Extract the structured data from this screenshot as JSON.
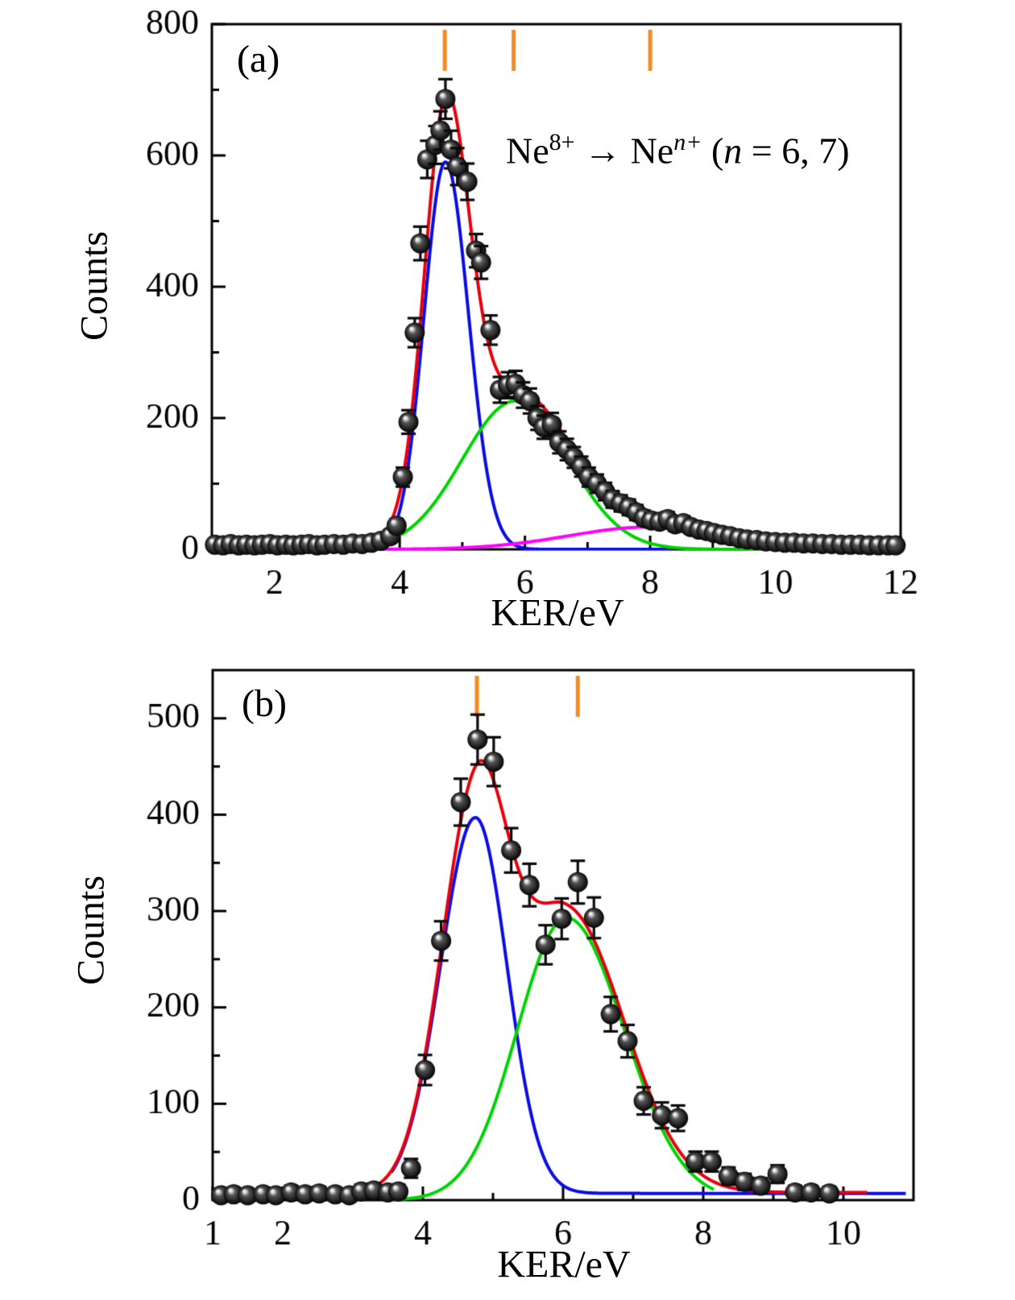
{
  "styles": {
    "total_color": "#e8000d",
    "component1_color": "#0b0be6",
    "component2_color": "#00d400",
    "component3_color": "#ff00ff",
    "marker_color": "#f58a1f",
    "axis_color": "#000000",
    "point_color": "#0a0a0a"
  },
  "chart_data": [
    {
      "type": "scatter",
      "panel_label": "(a)",
      "xlabel": "KER/eV",
      "ylabel": "Counts",
      "xlim": [
        1,
        12
      ],
      "ylim": [
        0,
        800
      ],
      "x_major_ticks": [
        2,
        4,
        6,
        8,
        10,
        12
      ],
      "x_minor_ticks": [
        3,
        5,
        7,
        9,
        11
      ],
      "y_major_ticks": [
        0,
        200,
        400,
        600,
        800
      ],
      "y_minor_ticks": [
        100,
        300,
        500,
        700
      ],
      "marker_lines_x": [
        4.72,
        5.82,
        8.0
      ],
      "annotation": {
        "base1": "Ne",
        "sup1": "8+",
        "arrow": " → ",
        "base2": "Ne",
        "sup2": "n+",
        "tail_open": " (",
        "tail_var": "n",
        "tail_rest": " = 6, 7)"
      },
      "fit_components": [
        {
          "name": "peak-blue",
          "color_key": "component1_color",
          "amp": 590,
          "center": 4.73,
          "sigma_left": 0.34,
          "sigma_right": 0.37,
          "baseline": 0,
          "draw_range": [
            3.6,
            8.35
          ]
        },
        {
          "name": "peak-green",
          "color_key": "component2_color",
          "amp": 226,
          "center": 5.85,
          "sigma_left": 0.85,
          "sigma_right": 0.85,
          "baseline": 0,
          "draw_range": [
            3.45,
            10.9
          ]
        },
        {
          "name": "peak-magenta",
          "color_key": "component3_color",
          "amp": 34,
          "center": 8.0,
          "sigma_left": 1.3,
          "sigma_right": 1.4,
          "baseline": 0,
          "draw_range": [
            3.5,
            12
          ]
        }
      ],
      "fit_total": {
        "name": "total-red",
        "color_key": "total_color",
        "baseline": 5,
        "draw_range": [
          1,
          12
        ]
      },
      "points": [
        [
          1.05,
          7
        ],
        [
          1.18,
          6
        ],
        [
          1.3,
          8
        ],
        [
          1.43,
          6
        ],
        [
          1.55,
          7
        ],
        [
          1.68,
          6
        ],
        [
          1.8,
          7
        ],
        [
          1.93,
          8
        ],
        [
          2.05,
          6
        ],
        [
          2.18,
          7
        ],
        [
          2.3,
          6
        ],
        [
          2.43,
          7
        ],
        [
          2.55,
          8
        ],
        [
          2.68,
          6
        ],
        [
          2.8,
          7
        ],
        [
          2.95,
          8
        ],
        [
          3.1,
          7
        ],
        [
          3.25,
          9
        ],
        [
          3.4,
          8
        ],
        [
          3.55,
          10
        ],
        [
          3.7,
          13
        ],
        [
          3.85,
          20
        ],
        [
          3.95,
          36
        ],
        [
          4.05,
          110
        ],
        [
          4.14,
          194
        ],
        [
          4.24,
          330
        ],
        [
          4.33,
          466
        ],
        [
          4.44,
          594
        ],
        [
          4.57,
          616
        ],
        [
          4.65,
          638
        ],
        [
          4.73,
          686
        ],
        [
          4.82,
          609
        ],
        [
          4.92,
          583
        ],
        [
          5.08,
          560
        ],
        [
          5.22,
          455
        ],
        [
          5.3,
          437
        ],
        [
          5.45,
          334
        ],
        [
          5.6,
          243
        ],
        [
          5.73,
          250
        ],
        [
          5.85,
          252
        ],
        [
          5.97,
          235
        ],
        [
          6.08,
          226
        ],
        [
          6.2,
          200
        ],
        [
          6.3,
          186
        ],
        [
          6.43,
          190
        ],
        [
          6.55,
          163
        ],
        [
          6.67,
          152
        ],
        [
          6.78,
          140
        ],
        [
          6.9,
          126
        ],
        [
          7.02,
          110
        ],
        [
          7.15,
          100
        ],
        [
          7.28,
          88
        ],
        [
          7.4,
          76
        ],
        [
          7.53,
          70
        ],
        [
          7.66,
          64
        ],
        [
          7.78,
          56
        ],
        [
          7.9,
          48
        ],
        [
          8.02,
          44
        ],
        [
          8.15,
          42
        ],
        [
          8.28,
          46
        ],
        [
          8.4,
          38
        ],
        [
          8.53,
          40
        ],
        [
          8.65,
          34
        ],
        [
          8.78,
          30
        ],
        [
          8.9,
          28
        ],
        [
          9.02,
          25
        ],
        [
          9.15,
          22
        ],
        [
          9.28,
          20
        ],
        [
          9.42,
          17
        ],
        [
          9.55,
          15
        ],
        [
          9.7,
          14
        ],
        [
          9.85,
          12
        ],
        [
          10.0,
          11
        ],
        [
          10.15,
          10
        ],
        [
          10.3,
          10
        ],
        [
          10.45,
          9
        ],
        [
          10.6,
          9
        ],
        [
          10.75,
          8
        ],
        [
          10.9,
          8
        ],
        [
          11.05,
          7
        ],
        [
          11.2,
          7
        ],
        [
          11.35,
          7
        ],
        [
          11.5,
          6
        ],
        [
          11.65,
          6
        ],
        [
          11.8,
          6
        ],
        [
          11.92,
          6
        ]
      ]
    },
    {
      "type": "scatter",
      "panel_label": "(b)",
      "xlabel": "KER/eV",
      "ylabel": "Counts",
      "xlim": [
        1,
        11
      ],
      "ylim": [
        0,
        550
      ],
      "x_major_ticks": [
        1,
        2,
        4,
        6,
        8,
        10
      ],
      "x_minor_ticks": [
        3,
        5,
        7,
        9
      ],
      "y_major_ticks": [
        0,
        100,
        200,
        300,
        400,
        500
      ],
      "y_minor_ticks": [
        50,
        150,
        250,
        350,
        450
      ],
      "marker_lines_x": [
        4.77,
        6.21
      ],
      "fit_components": [
        {
          "name": "peak-blue",
          "color_key": "component1_color",
          "amp": 390,
          "center": 4.75,
          "sigma_left": 0.5,
          "sigma_right": 0.45,
          "baseline": 7,
          "draw_range": [
            3.55,
            10.9
          ]
        },
        {
          "name": "peak-green",
          "color_key": "component2_color",
          "amp": 293,
          "center": 6.05,
          "sigma_left": 0.7,
          "sigma_right": 0.82,
          "baseline": 0,
          "draw_range": [
            3.45,
            8.15
          ]
        }
      ],
      "fit_total": {
        "name": "total-red",
        "color_key": "total_color",
        "baseline": 8,
        "draw_range": [
          1,
          10.35
        ]
      },
      "points": [
        [
          1.12,
          5
        ],
        [
          1.3,
          6
        ],
        [
          1.5,
          5
        ],
        [
          1.72,
          6
        ],
        [
          1.9,
          5
        ],
        [
          2.12,
          8
        ],
        [
          2.32,
          6
        ],
        [
          2.52,
          7
        ],
        [
          2.75,
          6
        ],
        [
          2.95,
          5
        ],
        [
          3.12,
          9
        ],
        [
          3.3,
          10
        ],
        [
          3.5,
          8
        ],
        [
          3.65,
          9
        ],
        [
          3.83,
          33
        ],
        [
          4.03,
          135
        ],
        [
          4.26,
          269
        ],
        [
          4.54,
          413
        ],
        [
          4.78,
          478
        ],
        [
          5.01,
          455
        ],
        [
          5.26,
          363
        ],
        [
          5.52,
          327
        ],
        [
          5.75,
          265
        ],
        [
          5.98,
          292
        ],
        [
          6.21,
          330
        ],
        [
          6.44,
          293
        ],
        [
          6.68,
          193
        ],
        [
          6.92,
          165
        ],
        [
          7.15,
          103
        ],
        [
          7.41,
          88
        ],
        [
          7.64,
          85
        ],
        [
          7.89,
          40
        ],
        [
          8.12,
          40
        ],
        [
          8.36,
          25
        ],
        [
          8.59,
          19
        ],
        [
          8.82,
          15
        ],
        [
          9.06,
          27
        ],
        [
          9.31,
          8
        ],
        [
          9.54,
          8
        ],
        [
          9.8,
          7
        ]
      ]
    }
  ]
}
